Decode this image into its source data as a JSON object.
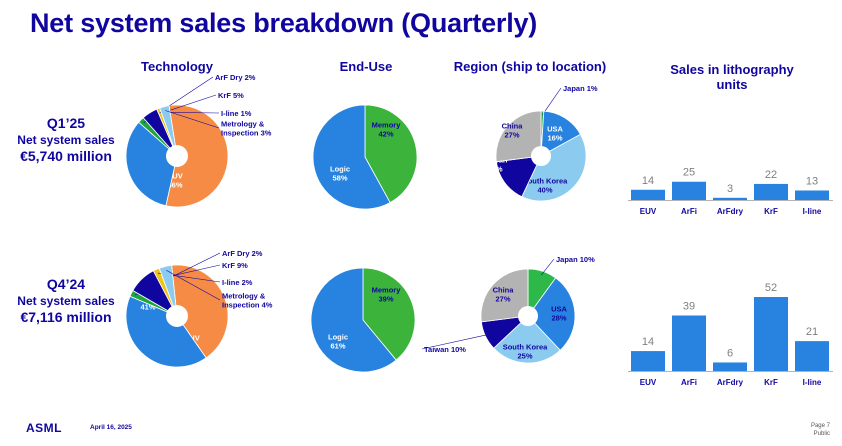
{
  "title": "Net system sales breakdown (Quarterly)",
  "headers": {
    "technology": "Technology",
    "end_use": "End-Use",
    "region": "Region (ship to location)",
    "litho_line1": "Sales in lithography",
    "litho_line2": "units"
  },
  "rows": [
    {
      "quarter": "Q1’25",
      "label": "Net system sales",
      "value": "€5,740 million"
    },
    {
      "quarter": "Q4’24",
      "label": "Net system sales",
      "value": "€7,116 million"
    }
  ],
  "colors": {
    "title": "#10069f",
    "euv": "#f68b45",
    "arfi": "#2783df",
    "arf_dry": "#1ea53b",
    "krf": "#10069f",
    "iline": "#f0c419",
    "metrology": "#8ccbf0",
    "memory": "#3cb43c",
    "logic": "#2783df",
    "japan": "#2fb84a",
    "usa": "#2783df",
    "south_korea": "#8ccbf0",
    "taiwan": "#10069f",
    "china": "#b3b3b3",
    "bar": "#2783df"
  },
  "chart_data": [
    {
      "type": "pie",
      "title": "Technology",
      "period": "Q1’25",
      "slices": [
        {
          "label": "EUV",
          "value": 56,
          "text": "EUV\n56%"
        },
        {
          "label": "ArFi",
          "value": 33,
          "text": "ArFi\n33%"
        },
        {
          "label": "ArF Dry",
          "value": 2,
          "text": "ArF Dry 2%"
        },
        {
          "label": "KrF",
          "value": 5,
          "text": "KrF 5%"
        },
        {
          "label": "I-line",
          "value": 1,
          "text": "I-line 1%"
        },
        {
          "label": "Metrology & Inspection",
          "value": 3,
          "text": "Metrology &\nInspection 3%"
        }
      ]
    },
    {
      "type": "pie",
      "title": "End-Use",
      "period": "Q1’25",
      "slices": [
        {
          "label": "Memory",
          "value": 42,
          "text": "Memory\n42%"
        },
        {
          "label": "Logic",
          "value": 58,
          "text": "Logic\n58%"
        }
      ]
    },
    {
      "type": "pie",
      "title": "Region (ship to location)",
      "period": "Q1’25",
      "slices": [
        {
          "label": "Japan",
          "value": 1,
          "text": "Japan 1%"
        },
        {
          "label": "USA",
          "value": 16,
          "text": "USA\n16%"
        },
        {
          "label": "South Korea",
          "value": 40,
          "text": "South Korea\n40%"
        },
        {
          "label": "Taiwan",
          "value": 16,
          "text": "Taiwan\n16%"
        },
        {
          "label": "China",
          "value": 27,
          "text": "China\n27%"
        }
      ]
    },
    {
      "type": "bar",
      "title": "Sales in lithography units",
      "period": "Q1’25",
      "categories": [
        "EUV",
        "ArFi",
        "ArFdry",
        "KrF",
        "I-line"
      ],
      "values": [
        14,
        25,
        3,
        22,
        13
      ],
      "ylim": [
        0,
        52
      ]
    },
    {
      "type": "pie",
      "title": "Technology",
      "period": "Q4’24",
      "slices": [
        {
          "label": "EUV",
          "value": 42,
          "text": "EUV\n42%"
        },
        {
          "label": "ArFi",
          "value": 41,
          "text": "ArFi\n41%"
        },
        {
          "label": "ArF Dry",
          "value": 2,
          "text": "ArF Dry 2%"
        },
        {
          "label": "KrF",
          "value": 9,
          "text": "KrF 9%"
        },
        {
          "label": "I-line",
          "value": 2,
          "text": "I-line 2%"
        },
        {
          "label": "Metrology & Inspection",
          "value": 4,
          "text": "Metrology &\nInspection 4%"
        }
      ]
    },
    {
      "type": "pie",
      "title": "End-Use",
      "period": "Q4’24",
      "slices": [
        {
          "label": "Memory",
          "value": 39,
          "text": "Memory\n39%"
        },
        {
          "label": "Logic",
          "value": 61,
          "text": "Logic\n61%"
        }
      ]
    },
    {
      "type": "pie",
      "title": "Region (ship to location)",
      "period": "Q4’24",
      "slices": [
        {
          "label": "Japan",
          "value": 10,
          "text": "Japan 10%"
        },
        {
          "label": "USA",
          "value": 28,
          "text": "USA\n28%"
        },
        {
          "label": "South Korea",
          "value": 25,
          "text": "South Korea\n25%"
        },
        {
          "label": "Taiwan",
          "value": 10,
          "text": "Taiwan 10%"
        },
        {
          "label": "China",
          "value": 27,
          "text": "China\n27%"
        }
      ]
    },
    {
      "type": "bar",
      "title": "Sales in lithography units",
      "period": "Q4’24",
      "categories": [
        "EUV",
        "ArFi",
        "ArFdry",
        "KrF",
        "I-line"
      ],
      "values": [
        14,
        39,
        6,
        52,
        21
      ],
      "ylim": [
        0,
        52
      ]
    }
  ],
  "footer": {
    "logo": "ASML",
    "date": "April 16, 2025",
    "page": "Page 7",
    "classification": "Public"
  }
}
